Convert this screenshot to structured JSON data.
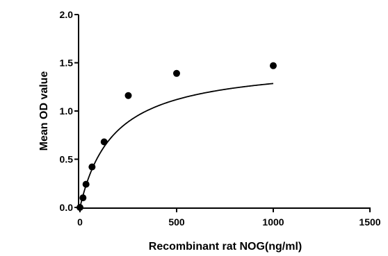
{
  "chart_data": {
    "type": "scatter",
    "title": "",
    "xlabel": "Recombinant rat NOG(ng/ml)",
    "ylabel": "Mean OD value",
    "xlim": [
      0,
      1500
    ],
    "ylim": [
      0,
      2.0
    ],
    "x_ticks": [
      0,
      500,
      1000,
      1500
    ],
    "x_tick_labels": [
      "0",
      "500",
      "1000",
      "1500"
    ],
    "y_ticks": [
      0,
      0.5,
      1.0,
      1.5,
      2.0
    ],
    "y_tick_labels": [
      "0.0",
      "0.5",
      "1.0",
      "1.5",
      "2.0"
    ],
    "grid": false,
    "legend": "none",
    "series": [
      {
        "x": [
          0,
          15.6,
          31.25,
          62.5,
          125,
          250,
          500,
          1000
        ],
        "y": [
          0.0,
          0.1,
          0.24,
          0.42,
          0.68,
          1.16,
          1.39,
          1.47
        ],
        "color": "#000000",
        "marker": "circle"
      }
    ],
    "fit_curve": {
      "model": "one-site saturation",
      "bmax": 1.51,
      "kd": 175,
      "color": "#000000"
    }
  }
}
